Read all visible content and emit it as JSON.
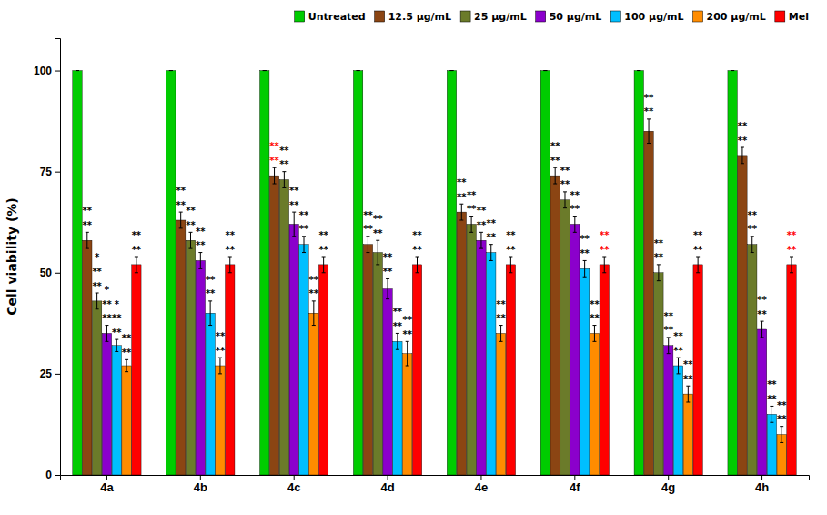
{
  "chart_data": {
    "type": "bar",
    "ylabel": "Cell viability (%)",
    "categories": [
      "4a",
      "4b",
      "4c",
      "4d",
      "4e",
      "4f",
      "4g",
      "4h"
    ],
    "ylim": [
      0,
      108
    ],
    "yticks": [
      0,
      25,
      50,
      75,
      100
    ],
    "grid": false,
    "legend": "upper right",
    "series": [
      {
        "name": "Untreated",
        "color": "#00CC00",
        "values": [
          100,
          100,
          100,
          100,
          100,
          100,
          100,
          100
        ],
        "errors": [
          0,
          0,
          0,
          0,
          0,
          0,
          0,
          0
        ]
      },
      {
        "name": "12.5 μg/mL",
        "color": "#8B4513",
        "values": [
          58,
          63,
          74,
          57,
          65,
          74,
          85,
          79
        ],
        "errors": [
          2.0,
          2.0,
          2.0,
          2.0,
          2.0,
          2.0,
          3.0,
          2.0
        ],
        "annotations": [
          {
            "lines": [
              "**",
              "**"
            ],
            "color": "black"
          },
          {
            "lines": [
              "**",
              "**"
            ],
            "color": "black"
          },
          {
            "lines": [
              "**",
              "**"
            ],
            "color": "red"
          },
          {
            "lines": [
              "**",
              "**"
            ],
            "color": "black"
          },
          {
            "lines": [
              "**",
              "**"
            ],
            "color": "black"
          },
          {
            "lines": [
              "**",
              "**"
            ],
            "color": "black"
          },
          {
            "lines": [
              "**",
              "**"
            ],
            "color": "black"
          },
          {
            "lines": [
              "**",
              "**"
            ],
            "color": "black"
          }
        ]
      },
      {
        "name": "25 μg/mL",
        "color": "#6B7B2A",
        "values": [
          43,
          58,
          73,
          55,
          62,
          68,
          50,
          57
        ],
        "errors": [
          2.0,
          2.0,
          2.0,
          3.0,
          2.0,
          2.0,
          2.0,
          2.0
        ],
        "annotations": [
          {
            "lines": [
              "**",
              "**",
              "*"
            ],
            "color": "black"
          },
          {
            "lines": [
              "**",
              "**"
            ],
            "color": "black"
          },
          {
            "lines": [
              "**",
              "**"
            ],
            "color": "black"
          },
          {
            "lines": [
              "**",
              "**"
            ],
            "color": "black"
          },
          {
            "lines": [
              "**",
              "**"
            ],
            "color": "black"
          },
          {
            "lines": [
              "**",
              "**"
            ],
            "color": "black"
          },
          {
            "lines": [
              "**",
              "**"
            ],
            "color": "black"
          },
          {
            "lines": [
              "**",
              "**"
            ],
            "color": "black"
          }
        ]
      },
      {
        "name": "50 μg/mL",
        "color": "#8B00CC",
        "values": [
          35,
          53,
          62,
          46,
          58,
          62,
          32,
          36
        ],
        "errors": [
          2.0,
          2.0,
          3.0,
          2.5,
          2.0,
          2.0,
          2.0,
          2.0
        ],
        "annotations": [
          {
            "lines": [
              "**",
              "**",
              "*"
            ],
            "color": "black"
          },
          {
            "lines": [
              "**",
              "**"
            ],
            "color": "black"
          },
          {
            "lines": [
              "**",
              "**"
            ],
            "color": "black"
          },
          {
            "lines": [
              "**",
              "**"
            ],
            "color": "black"
          },
          {
            "lines": [
              "**",
              "**"
            ],
            "color": "black"
          },
          {
            "lines": [
              "**",
              "**"
            ],
            "color": "black"
          },
          {
            "lines": [
              "**",
              "**"
            ],
            "color": "black"
          },
          {
            "lines": [
              "**",
              "**"
            ],
            "color": "black"
          }
        ]
      },
      {
        "name": "100 μg/mL",
        "color": "#00BFFF",
        "values": [
          32,
          40,
          57,
          33,
          55,
          51,
          27,
          15
        ],
        "errors": [
          1.5,
          3.0,
          2.0,
          2.0,
          2.0,
          2.0,
          2.0,
          2.0
        ],
        "annotations": [
          {
            "lines": [
              "**",
              "**",
              "*"
            ],
            "color": "black"
          },
          {
            "lines": [
              "**",
              "**"
            ],
            "color": "black"
          },
          {
            "lines": [
              "**",
              "**"
            ],
            "color": "black"
          },
          {
            "lines": [
              "**",
              "**"
            ],
            "color": "black"
          },
          {
            "lines": [
              "**",
              "**"
            ],
            "color": "black"
          },
          {
            "lines": [
              "**",
              "**"
            ],
            "color": "black"
          },
          {
            "lines": [
              "**",
              "**"
            ],
            "color": "black"
          },
          {
            "lines": [
              "**",
              "**"
            ],
            "color": "black"
          }
        ]
      },
      {
        "name": "200 μg/mL",
        "color": "#FF8C00",
        "values": [
          27,
          27,
          40,
          30,
          35,
          35,
          20,
          10
        ],
        "errors": [
          1.5,
          2.0,
          3.0,
          3.0,
          2.0,
          2.0,
          2.0,
          2.0
        ],
        "annotations": [
          {
            "lines": [
              "**",
              "**"
            ],
            "color": "black"
          },
          {
            "lines": [
              "**",
              "**"
            ],
            "color": "black"
          },
          {
            "lines": [
              "**",
              "**"
            ],
            "color": "black"
          },
          {
            "lines": [
              "**",
              "**"
            ],
            "color": "black"
          },
          {
            "lines": [
              "**",
              "**"
            ],
            "color": "black"
          },
          {
            "lines": [
              "**",
              "**"
            ],
            "color": "black"
          },
          {
            "lines": [
              "**",
              "**"
            ],
            "color": "black"
          },
          {
            "lines": [
              "**",
              "**"
            ],
            "color": "black"
          }
        ]
      },
      {
        "name": "Mel",
        "color": "#FF0000",
        "values": [
          52,
          52,
          52,
          52,
          52,
          52,
          52,
          52
        ],
        "errors": [
          2.0,
          2.0,
          2.0,
          2.0,
          2.0,
          2.0,
          2.0,
          2.0
        ],
        "annotations": [
          {
            "lines": [
              "**",
              "**"
            ],
            "color": "black"
          },
          {
            "lines": [
              "**",
              "**"
            ],
            "color": "black"
          },
          {
            "lines": [
              "**",
              "**"
            ],
            "color": "black"
          },
          {
            "lines": [
              "**",
              "**"
            ],
            "color": "black"
          },
          {
            "lines": [
              "**",
              "**"
            ],
            "color": "black"
          },
          {
            "lines": [
              "**",
              "**"
            ],
            "color": "red"
          },
          {
            "lines": [
              "**",
              "**"
            ],
            "color": "black"
          },
          {
            "lines": [
              "**",
              "**"
            ],
            "color": "red"
          }
        ]
      }
    ]
  }
}
